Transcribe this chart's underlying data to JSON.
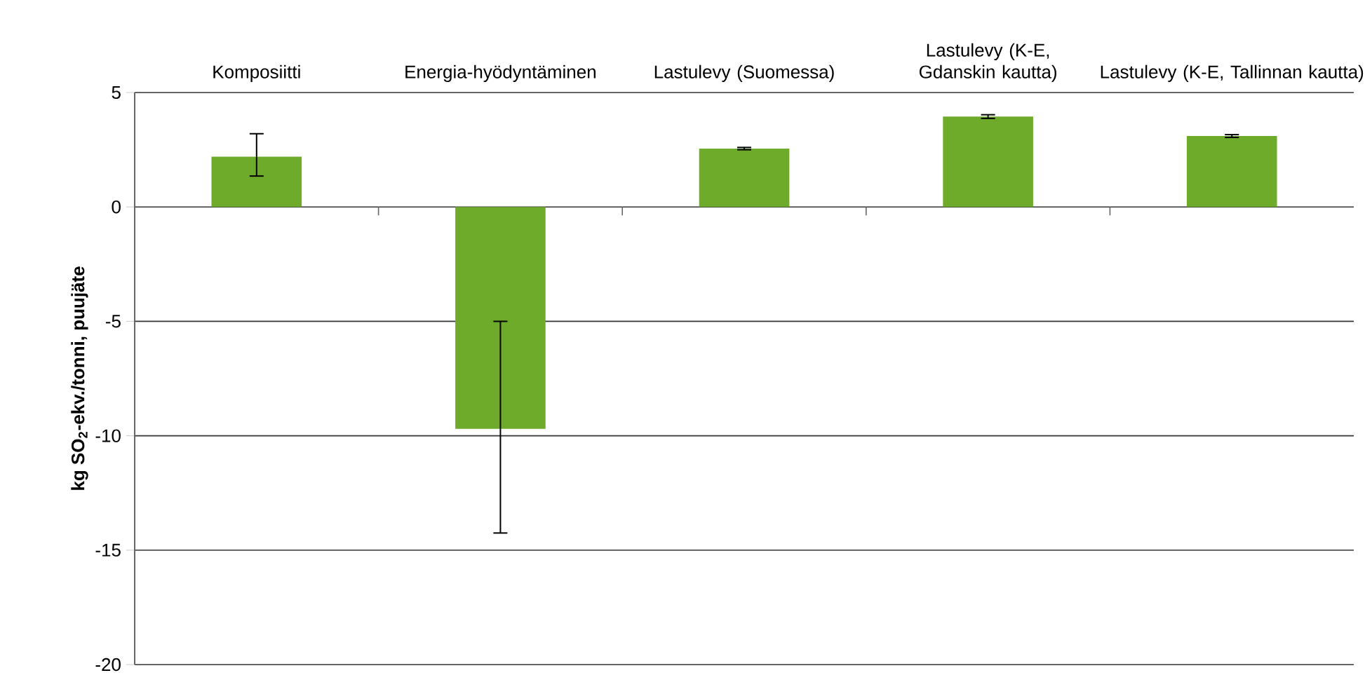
{
  "chart_data": {
    "type": "bar",
    "ylabel": "kg SO$_{2}$-ekv./tonni, puujäte",
    "categories": [
      "Komposiitti",
      "Energia-hyödyntäminen",
      "Lastulevy (Suomessa)",
      "Lastulevy (K-E, Gdanskin kautta)",
      "Lastulevy (K-E, Tallinnan kautta)"
    ],
    "values": [
      2.2,
      -9.7,
      2.55,
      3.95,
      3.1
    ],
    "errors": [
      [
        1.35,
        3.2
      ],
      [
        -14.25,
        -5.0
      ],
      0.05,
      0.08,
      0.06
    ],
    "color": "#6fab2b",
    "ylim": [
      -20,
      5
    ],
    "yticks": [
      -20,
      -15,
      -10,
      -5,
      0,
      5
    ],
    "grid": "y"
  }
}
